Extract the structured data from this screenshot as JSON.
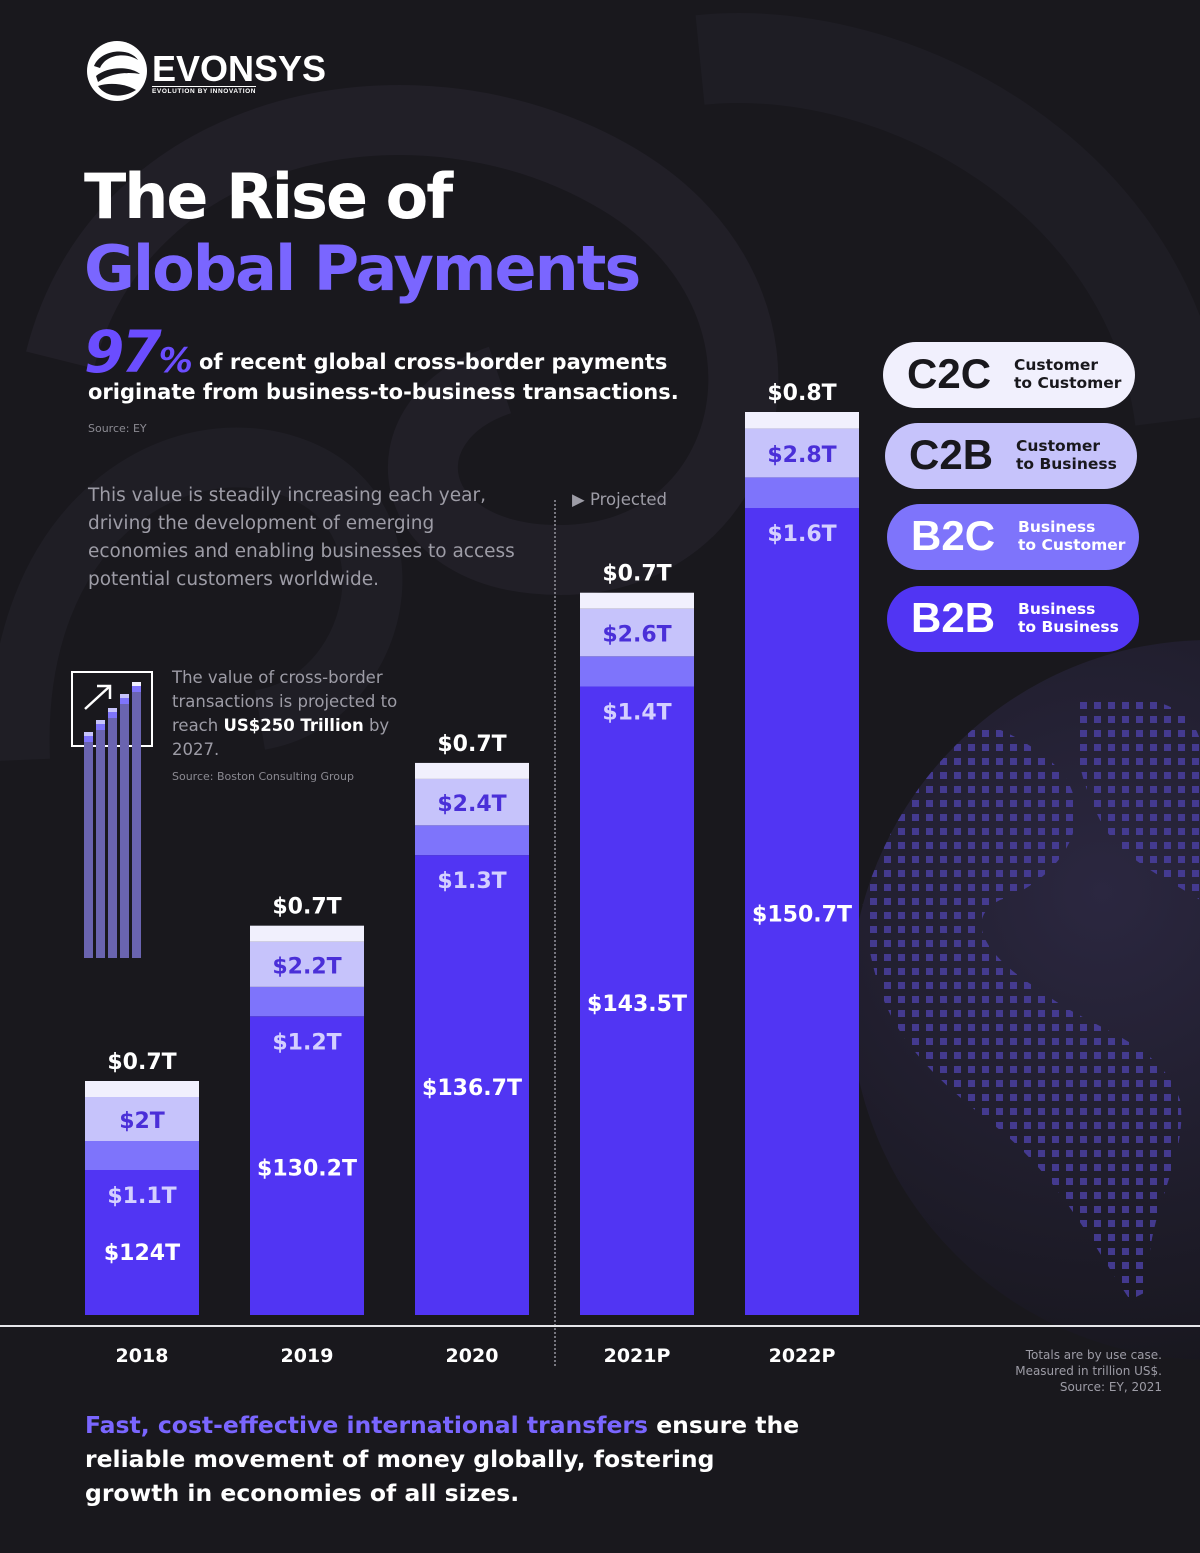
{
  "brand": {
    "name": "EVONSYS",
    "tagline": "EVOLUTION BY INNOVATION"
  },
  "title": {
    "line1": "The Rise of",
    "line2": "Global Payments"
  },
  "headline_stat": {
    "value": "97",
    "unit": "%",
    "text_line1": "of recent global cross-border payments",
    "text_line2": "originate from business-to-business transactions.",
    "source": "Source: EY"
  },
  "description": "This value is steadily increasing each year, driving the development of emerging economies and enabling businesses to access potential customers worldwide.",
  "callout": {
    "text_before": "The value of cross-border transactions is projected to reach ",
    "highlight": "US$250 Trillion",
    "text_after": " by 2027.",
    "source": "Source: Boston Consulting Group"
  },
  "projected_label": "Projected",
  "legend": [
    {
      "code": "C2C",
      "line1": "Customer",
      "line2": "to Customer",
      "bg": "#f1f0fd",
      "fg": "#19181d"
    },
    {
      "code": "C2B",
      "line1": "Customer",
      "line2": "to Business",
      "bg": "#c6c3fb",
      "fg": "#19181d"
    },
    {
      "code": "B2C",
      "line1": "Business",
      "line2": "to Customer",
      "bg": "#7e74fb",
      "fg": "#ffffff"
    },
    {
      "code": "B2B",
      "line1": "Business",
      "line2": "to Business",
      "bg": "#5135f3",
      "fg": "#ffffff"
    }
  ],
  "chart_data": {
    "type": "bar",
    "stacked": true,
    "categories": [
      "2018",
      "2019",
      "2020",
      "2021P",
      "2022P"
    ],
    "series": [
      {
        "name": "B2B",
        "values": [
          124,
          130.2,
          136.7,
          143.5,
          150.7
        ],
        "labels": [
          "$124T",
          "$130.2T",
          "$136.7T",
          "$143.5T",
          "$150.7T"
        ],
        "color": "#5135f3"
      },
      {
        "name": "B2C",
        "values": [
          1.1,
          1.2,
          1.3,
          1.4,
          1.6
        ],
        "labels": [
          "$1.1T",
          "$1.2T",
          "$1.3T",
          "$1.4T",
          "$1.6T"
        ],
        "color": "#7e74fb"
      },
      {
        "name": "C2B",
        "values": [
          2,
          2.2,
          2.4,
          2.6,
          2.8
        ],
        "labels": [
          "$2T",
          "$2.2T",
          "$2.4T",
          "$2.6T",
          "$2.8T"
        ],
        "color": "#c6c3fb"
      },
      {
        "name": "C2C",
        "values": [
          0.7,
          0.7,
          0.7,
          0.7,
          0.8
        ],
        "labels": [
          "$0.7T",
          "$0.7T",
          "$0.7T",
          "$0.7T",
          "$0.8T"
        ],
        "color": "#f1f0fd"
      }
    ],
    "notes": [
      "Totals are by use case.",
      "Measured in trillion US$.",
      "Source: EY, 2021"
    ]
  },
  "bottom_text": {
    "highlight": "Fast, cost-effective international transfers",
    "rest": " ensure the reliable movement of money globally, fostering growth in economies of all sizes."
  }
}
